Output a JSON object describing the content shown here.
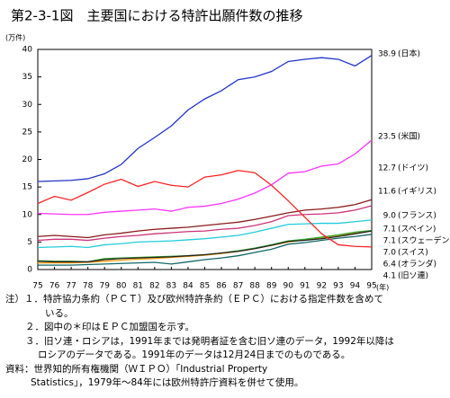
{
  "chart_data": {
    "type": "line",
    "title": "第2-3-1図　主要国における特許出願件数の推移",
    "y_unit": "(万件)",
    "x_unit": "(年)",
    "categories": [
      "75",
      "76",
      "77",
      "78",
      "79",
      "80",
      "81",
      "82",
      "83",
      "84",
      "85",
      "86",
      "87",
      "88",
      "89",
      "90",
      "91",
      "92",
      "93",
      "94",
      "95"
    ],
    "ylim": [
      0,
      40
    ],
    "yticks": [
      0,
      5,
      10,
      15,
      20,
      25,
      30,
      35,
      40
    ],
    "grid": false,
    "series": [
      {
        "name": "(日本)",
        "end_value_label": "38.9",
        "color": "#2233cc",
        "values": [
          16.0,
          16.1,
          16.2,
          16.5,
          17.4,
          19.1,
          22.0,
          24.0,
          26.1,
          29.0,
          31.0,
          32.5,
          34.5,
          35.0,
          36.0,
          37.8,
          38.2,
          38.5,
          38.2,
          37.0,
          38.9
        ]
      },
      {
        "name": "(米国)",
        "end_value_label": "23.5",
        "color": "#ff33ff",
        "values": [
          10.2,
          10.1,
          10.0,
          10.0,
          10.4,
          10.6,
          10.8,
          11.0,
          10.6,
          11.3,
          11.5,
          12.0,
          12.8,
          13.9,
          15.4,
          17.5,
          17.8,
          18.8,
          19.2,
          21.0,
          23.5
        ]
      },
      {
        "name": "(ドイツ)",
        "end_value_label": "12.7",
        "color": "#8b1a1a",
        "values": [
          6.0,
          6.2,
          6.0,
          5.8,
          6.3,
          6.6,
          7.0,
          7.3,
          7.5,
          7.7,
          8.0,
          8.3,
          8.6,
          9.1,
          9.7,
          10.3,
          10.8,
          11.0,
          11.3,
          11.8,
          12.7
        ]
      },
      {
        "name": "(イギリス)",
        "end_value_label": "11.6",
        "color": "#cc3377",
        "values": [
          5.3,
          5.5,
          5.5,
          5.3,
          5.7,
          6.0,
          6.2,
          6.5,
          6.7,
          6.9,
          7.0,
          7.3,
          7.5,
          8.0,
          8.7,
          9.8,
          10.0,
          10.1,
          10.3,
          10.8,
          11.6
        ]
      },
      {
        "name": "(フランス)",
        "end_value_label": "9.0",
        "color": "#22ccdd",
        "values": [
          4.0,
          4.1,
          4.2,
          4.0,
          4.5,
          4.7,
          5.0,
          5.1,
          5.2,
          5.4,
          5.6,
          5.9,
          6.2,
          6.8,
          7.5,
          8.2,
          8.3,
          8.4,
          8.4,
          8.7,
          9.0
        ]
      },
      {
        "name": "(スペイン)",
        "end_value_label": "7.1",
        "color": "#ff9900",
        "values": [
          1.2,
          1.2,
          1.2,
          1.3,
          1.5,
          1.7,
          1.9,
          2.0,
          2.2,
          2.4,
          2.6,
          2.9,
          3.3,
          3.8,
          4.4,
          5.0,
          5.4,
          5.8,
          6.2,
          6.6,
          7.1
        ]
      },
      {
        "name": "(スウェーデン)",
        "end_value_label": "7.1",
        "color": "#33aa33",
        "values": [
          1.6,
          1.5,
          1.5,
          1.4,
          2.0,
          2.1,
          2.2,
          2.3,
          2.4,
          2.5,
          2.7,
          3.0,
          3.4,
          3.9,
          4.5,
          5.2,
          5.5,
          5.9,
          6.3,
          6.8,
          7.1
        ]
      },
      {
        "name": "(スイス)",
        "end_value_label": "7.0",
        "color": "#222222",
        "values": [
          1.5,
          1.4,
          1.4,
          1.4,
          1.8,
          2.0,
          2.1,
          2.2,
          2.3,
          2.5,
          2.7,
          3.0,
          3.3,
          3.8,
          4.4,
          5.1,
          5.3,
          5.6,
          6.0,
          6.5,
          7.0
        ]
      },
      {
        "name": "(オランダ)",
        "end_value_label": "6.4",
        "color": "#116666",
        "values": [
          0.8,
          0.8,
          0.8,
          0.9,
          1.0,
          1.1,
          1.2,
          1.3,
          1.0,
          1.4,
          1.8,
          2.1,
          2.5,
          3.1,
          3.7,
          4.6,
          4.9,
          5.3,
          5.7,
          6.0,
          6.4
        ]
      },
      {
        "name": "(旧ソ連)",
        "end_value_label": "4.1",
        "color": "#ff2222",
        "values": [
          12.0,
          13.3,
          12.6,
          14.0,
          15.5,
          16.4,
          15.1,
          16.0,
          15.3,
          15.0,
          16.8,
          17.2,
          18.0,
          17.6,
          15.3,
          12.5,
          9.5,
          6.5,
          4.5,
          4.2,
          4.1
        ]
      }
    ]
  },
  "notes": [
    "注）１．特許協力条約（ＰＣＴ）及び欧州特許条約（ＥＰＣ）における指定件数を含めて",
    "いる。",
    "２．図中の＊印はＥＰＣ加盟国を示す。",
    "３．旧ソ連・ロシアは，1991年までは発明者証を含む旧ソ連のデータ，1992年以降は",
    "ロシアのデータである。1991年のデータは12月24日までのものである。",
    "資料：世界知的所有権機関（ＷＩＰＯ）「Industrial Property",
    "Statistics」，1979年～84年には欧州特許庁資料を併せて使用。"
  ]
}
